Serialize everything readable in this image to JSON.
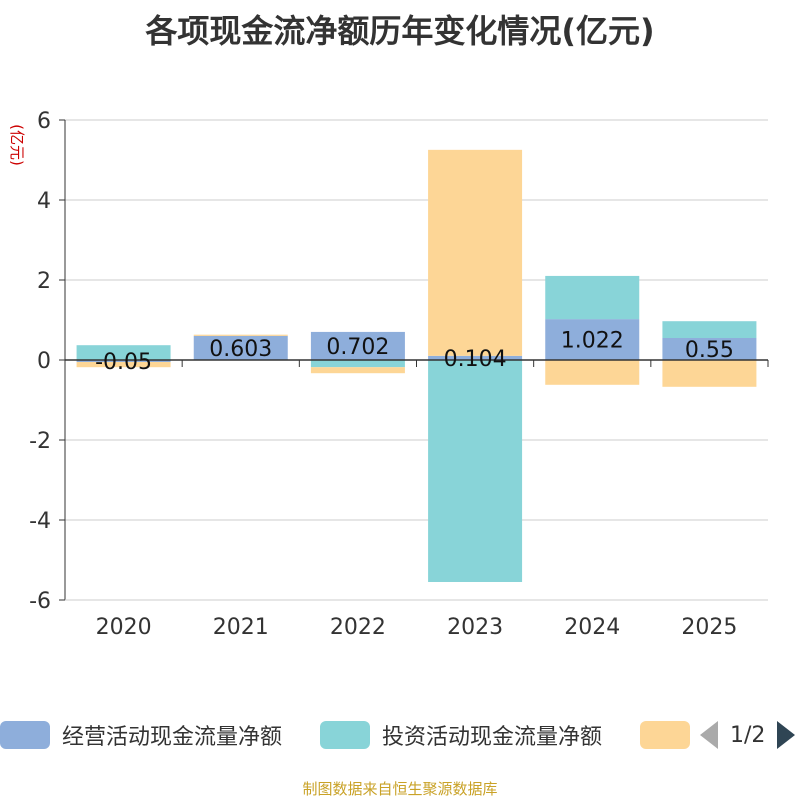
{
  "chart_data": {
    "type": "bar",
    "stacked": true,
    "title": "各项现金流净额历年变化情况(亿元)",
    "ylabel": "(亿元)",
    "xlabel": "",
    "categories": [
      "2020",
      "2021",
      "2022",
      "2023",
      "2024",
      "2025"
    ],
    "ylim": [
      -6,
      6
    ],
    "yticks": [
      -6,
      -4,
      -2,
      0,
      2,
      4,
      6
    ],
    "grid": true,
    "series": [
      {
        "name": "经营活动现金流量净额",
        "color": "#8eaedb",
        "values": [
          -0.05,
          0.603,
          0.702,
          0.104,
          1.022,
          0.55
        ],
        "labels": [
          "-0.05",
          "0.603",
          "0.702",
          "0.104",
          "1.022",
          "0.55"
        ]
      },
      {
        "name": "投资活动现金流量净额",
        "color": "#88d4d8",
        "values": [
          0.37,
          0.0,
          -0.18,
          -5.55,
          1.08,
          0.42
        ]
      },
      {
        "name": "",
        "color": "#fdd696",
        "values": [
          -0.13,
          0.03,
          -0.15,
          5.15,
          -0.62,
          -0.67
        ]
      }
    ]
  },
  "legend": {
    "items": [
      {
        "label": "经营活动现金流量净额",
        "color": "#8eaedb"
      },
      {
        "label": "投资活动现金流量净额",
        "color": "#88d4d8"
      },
      {
        "label": "",
        "color": "#fdd696"
      }
    ],
    "page": "1/2"
  },
  "source": "制图数据来自恒生聚源数据库"
}
